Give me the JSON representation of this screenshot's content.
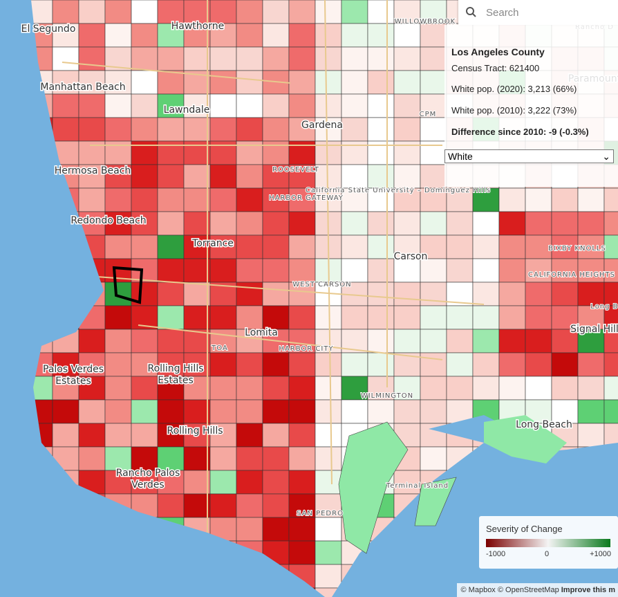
{
  "search": {
    "placeholder": "Search"
  },
  "info_panel": {
    "county": "Los Angeles County",
    "tract": "Census Tract: 621400",
    "pop_2020": "White pop. (2020): 3,213 (66%)",
    "pop_2010": "White pop. (2010): 3,222 (73%)",
    "difference": "Difference since 2010: -9 (-0.3%)"
  },
  "layer_select": {
    "selected": "White"
  },
  "legend": {
    "title": "Severity of Change",
    "ticks": [
      "-1000",
      "0",
      "+1000"
    ]
  },
  "attribution": {
    "credits": "© Mapbox © OpenStreetMap",
    "improve": "Improve this m"
  },
  "map": {
    "labels": [
      "El Segundo",
      "Hawthorne",
      "Manhattan Beach",
      "Lawndale",
      "Gardena",
      "Hermosa Beach",
      "Redondo Beach",
      "Torrance",
      "Carson",
      "Lomita",
      "Palos Verdes Estates",
      "Rolling Hills Estates",
      "Rolling Hills",
      "Rancho Palos Verdes",
      "Long Beach",
      "SAN PEDRO",
      "WILMINGTON",
      "WEST CARSON",
      "HARBOR GATEWAY",
      "HARBOR CITY",
      "ROOSEVELT",
      "California State University – Dominguez Hills",
      "CPM",
      "BIXBY KNOLLS",
      "CALIFORNIA HEIGHTS",
      "Signal Hill",
      "Terminal Island",
      "WILLOWBROOK",
      "Paramount",
      "TOA",
      "Long Be",
      "Rancho D"
    ]
  }
}
